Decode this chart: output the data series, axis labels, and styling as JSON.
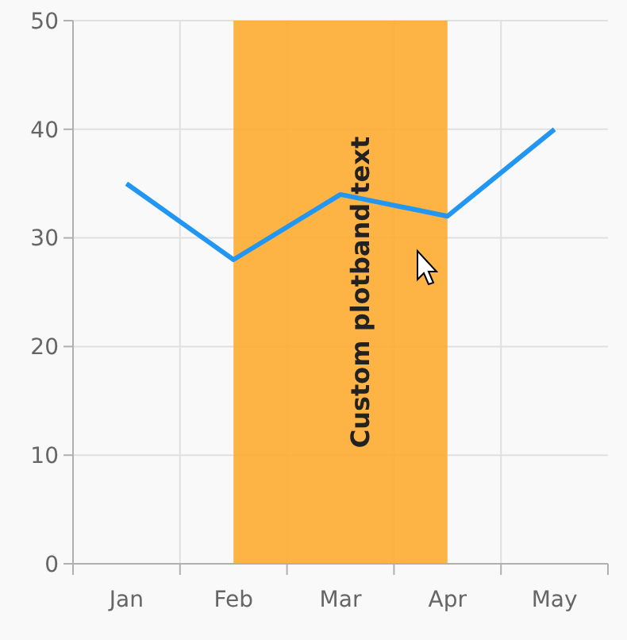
{
  "chart_data": {
    "type": "line",
    "categories": [
      "Jan",
      "Feb",
      "Mar",
      "Apr",
      "May"
    ],
    "series": [
      {
        "color": "#2196f3",
        "values": [
          35,
          28,
          34,
          32,
          40
        ]
      }
    ],
    "ylim": [
      0,
      50
    ],
    "yticks": [
      0,
      10,
      20,
      30,
      40,
      50
    ],
    "grid": true,
    "marker": "none",
    "line_style": "solid",
    "bands": [
      {
        "axis": "x",
        "from": "Feb",
        "to": "Apr",
        "label": "Custom plotband text",
        "color": "#ffa726"
      }
    ]
  }
}
